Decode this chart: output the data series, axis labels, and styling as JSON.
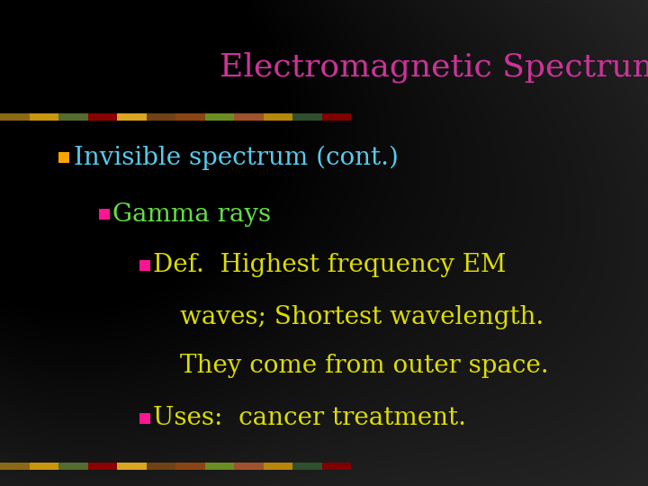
{
  "title": "Electromagnetic Spectrum",
  "title_color": "#CC3399",
  "title_fontsize": 26,
  "bullet1_text": "Invisible spectrum (cont.)",
  "bullet1_color": "#55CCEE",
  "bullet1_bullet_color": "#FFA500",
  "bullet1_fontsize": 20,
  "bullet2_text": "Gamma rays",
  "bullet2_color": "#66DD44",
  "bullet2_bullet_color": "#FF1493",
  "bullet2_fontsize": 20,
  "bullet3_line1": "Def.  Highest frequency EM",
  "bullet3_line2": "waves; Shortest wavelength.",
  "bullet3_line3": "They come from outer space.",
  "bullet3_color": "#DDDD00",
  "bullet3_bullet_color": "#FF1493",
  "bullet3_fontsize": 20,
  "bullet4_text": "Uses:  cancer treatment.",
  "bullet4_color": "#DDDD00",
  "bullet4_bullet_color": "#FF1493",
  "bullet4_fontsize": 20
}
